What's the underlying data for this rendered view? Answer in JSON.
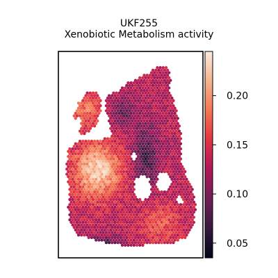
{
  "chart_data": {
    "type": "heatmap",
    "title_lines": [
      "UKF255",
      "Xenobiotic Metabolism activity"
    ],
    "colorbar": {
      "range": [
        0.035,
        0.245
      ],
      "ticks": [
        0.05,
        0.1,
        0.15,
        0.2
      ],
      "tick_labels": [
        "0.05",
        "0.10",
        "0.15",
        "0.20"
      ],
      "colormap": "rocket",
      "stops": [
        "#03051a",
        "#36193e",
        "#701f57",
        "#ad1759",
        "#e13342",
        "#f37651",
        "#f6b48f",
        "#faebdd"
      ]
    },
    "grid": false,
    "legend": "colorbar-right",
    "axes_ticks_visible": false,
    "missing_spots_note": ""
  }
}
